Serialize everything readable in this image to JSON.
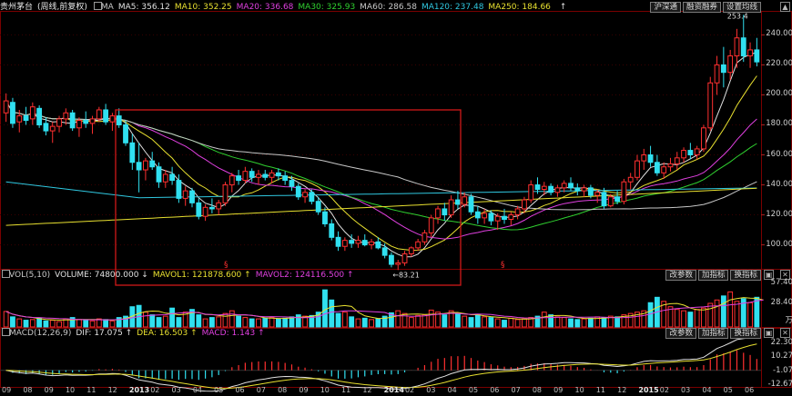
{
  "header": {
    "stock_name": "贵州茅台",
    "mode": "(周线,前复权)",
    "series_box": "MA",
    "ma": [
      {
        "label": "MA5: 356.12",
        "color": "#e0e0e0"
      },
      {
        "label": "MA10: 352.25",
        "color": "#e8e030"
      },
      {
        "label": "MA20: 336.68",
        "color": "#e040e0"
      },
      {
        "label": "MA30: 325.93",
        "color": "#30d030"
      },
      {
        "label": "MA60: 286.58",
        "color": "#c8c8c8"
      },
      {
        "label": "MA120: 237.48",
        "color": "#30c8e0"
      },
      {
        "label": "MA250: 184.66",
        "color": "#e8e030"
      }
    ],
    "arrow": "↑"
  },
  "top_buttons": [
    "沪深通",
    "融资融券",
    "设置均线"
  ],
  "vol_panel": {
    "series_box": "VOL(5,10)",
    "items": [
      {
        "label": "VOLUME: 74800.000",
        "color": "#e0e0e0",
        "arrow": "↓"
      },
      {
        "label": "MAVOL1: 121878.600",
        "color": "#e8e030",
        "arrow": "↑"
      },
      {
        "label": "MAVOL2: 124116.500",
        "color": "#e040e0",
        "arrow": "↑"
      }
    ],
    "buttons": [
      "改参数",
      "加指标",
      "换指标"
    ]
  },
  "macd_panel": {
    "series_box": "MACD(12,26,9)",
    "items": [
      {
        "label": "DIF: 17.075",
        "color": "#e0e0e0",
        "arrow": "↑"
      },
      {
        "label": "DEA: 16.503",
        "color": "#e8e030",
        "arrow": "↑"
      },
      {
        "label": "MACD: 1.143",
        "color": "#e040e0",
        "arrow": "↑"
      }
    ],
    "buttons": [
      "改参数",
      "加指标",
      "换指标"
    ]
  },
  "annotations": {
    "low_label": "←83.21",
    "high_label": "253.4",
    "marker_left": "§",
    "marker_right": "§",
    "box_color": "#d01818"
  },
  "colors": {
    "up": "#ff3030",
    "down": "#30e0f0",
    "bg": "#000000",
    "grid": "#7a0000"
  },
  "chart_data": {
    "type": "candlestick",
    "price_axis": {
      "ticks": [
        "240.00",
        "220.00",
        "200.00",
        "180.00",
        "160.00",
        "140.00",
        "120.00",
        "100.00"
      ],
      "range": [
        84,
        256
      ]
    },
    "vol_axis": {
      "ticks": [
        "57.40",
        "28.40",
        "万"
      ],
      "range": [
        0,
        70
      ]
    },
    "macd_axis": {
      "ticks": [
        "22.30",
        "10.27",
        "-1.07",
        "-12.67"
      ],
      "range": [
        -12.67,
        24
      ]
    },
    "x_ticks": [
      "09",
      "08",
      "09",
      "10",
      "11",
      "12",
      "2013",
      "02",
      "03",
      "04",
      "05",
      "06",
      "07",
      "08",
      "09",
      "10",
      "11",
      "12",
      "2014",
      "02",
      "03",
      "04",
      "05",
      "06",
      "07",
      "08",
      "09",
      "10",
      "11",
      "12",
      "2015",
      "02",
      "03",
      "04",
      "05",
      "06"
    ],
    "x_year_ticks": [
      "2013",
      "2014",
      "2015"
    ],
    "candles": [
      {
        "o": 188,
        "h": 201,
        "l": 182,
        "c": 196
      },
      {
        "o": 195,
        "h": 198,
        "l": 178,
        "c": 181
      },
      {
        "o": 182,
        "h": 190,
        "l": 175,
        "c": 186
      },
      {
        "o": 186,
        "h": 192,
        "l": 180,
        "c": 183
      },
      {
        "o": 184,
        "h": 195,
        "l": 180,
        "c": 192
      },
      {
        "o": 191,
        "h": 193,
        "l": 178,
        "c": 180
      },
      {
        "o": 181,
        "h": 185,
        "l": 173,
        "c": 176
      },
      {
        "o": 176,
        "h": 182,
        "l": 168,
        "c": 179
      },
      {
        "o": 179,
        "h": 186,
        "l": 175,
        "c": 184
      },
      {
        "o": 184,
        "h": 191,
        "l": 180,
        "c": 188
      },
      {
        "o": 188,
        "h": 190,
        "l": 176,
        "c": 178
      },
      {
        "o": 178,
        "h": 185,
        "l": 172,
        "c": 183
      },
      {
        "o": 183,
        "h": 189,
        "l": 178,
        "c": 181
      },
      {
        "o": 181,
        "h": 186,
        "l": 174,
        "c": 184
      },
      {
        "o": 184,
        "h": 192,
        "l": 182,
        "c": 190
      },
      {
        "o": 190,
        "h": 194,
        "l": 180,
        "c": 182
      },
      {
        "o": 182,
        "h": 188,
        "l": 176,
        "c": 186
      },
      {
        "o": 186,
        "h": 191,
        "l": 178,
        "c": 180
      },
      {
        "o": 180,
        "h": 183,
        "l": 166,
        "c": 168
      },
      {
        "o": 168,
        "h": 174,
        "l": 150,
        "c": 155
      },
      {
        "o": 155,
        "h": 168,
        "l": 135,
        "c": 150
      },
      {
        "o": 150,
        "h": 158,
        "l": 143,
        "c": 156
      },
      {
        "o": 156,
        "h": 162,
        "l": 150,
        "c": 152
      },
      {
        "o": 152,
        "h": 155,
        "l": 138,
        "c": 142
      },
      {
        "o": 142,
        "h": 150,
        "l": 138,
        "c": 147
      },
      {
        "o": 147,
        "h": 152,
        "l": 140,
        "c": 143
      },
      {
        "o": 143,
        "h": 147,
        "l": 128,
        "c": 131
      },
      {
        "o": 131,
        "h": 139,
        "l": 126,
        "c": 136
      },
      {
        "o": 136,
        "h": 138,
        "l": 125,
        "c": 128
      },
      {
        "o": 128,
        "h": 131,
        "l": 117,
        "c": 119
      },
      {
        "o": 119,
        "h": 127,
        "l": 116,
        "c": 125
      },
      {
        "o": 125,
        "h": 131,
        "l": 121,
        "c": 124
      },
      {
        "o": 124,
        "h": 130,
        "l": 120,
        "c": 128
      },
      {
        "o": 128,
        "h": 142,
        "l": 126,
        "c": 140
      },
      {
        "o": 140,
        "h": 148,
        "l": 135,
        "c": 146
      },
      {
        "o": 146,
        "h": 150,
        "l": 140,
        "c": 143
      },
      {
        "o": 143,
        "h": 152,
        "l": 141,
        "c": 149
      },
      {
        "o": 149,
        "h": 151,
        "l": 142,
        "c": 145
      },
      {
        "o": 145,
        "h": 150,
        "l": 140,
        "c": 147
      },
      {
        "o": 147,
        "h": 150,
        "l": 143,
        "c": 145
      },
      {
        "o": 145,
        "h": 150,
        "l": 141,
        "c": 148
      },
      {
        "o": 148,
        "h": 151,
        "l": 143,
        "c": 146
      },
      {
        "o": 146,
        "h": 149,
        "l": 140,
        "c": 143
      },
      {
        "o": 143,
        "h": 146,
        "l": 136,
        "c": 139
      },
      {
        "o": 139,
        "h": 141,
        "l": 130,
        "c": 132
      },
      {
        "o": 132,
        "h": 137,
        "l": 128,
        "c": 135
      },
      {
        "o": 135,
        "h": 137,
        "l": 127,
        "c": 129
      },
      {
        "o": 129,
        "h": 132,
        "l": 120,
        "c": 122
      },
      {
        "o": 122,
        "h": 125,
        "l": 112,
        "c": 114
      },
      {
        "o": 114,
        "h": 117,
        "l": 103,
        "c": 105
      },
      {
        "o": 105,
        "h": 109,
        "l": 96,
        "c": 99
      },
      {
        "o": 99,
        "h": 105,
        "l": 96,
        "c": 103
      },
      {
        "o": 103,
        "h": 107,
        "l": 98,
        "c": 101
      },
      {
        "o": 101,
        "h": 106,
        "l": 98,
        "c": 103
      },
      {
        "o": 103,
        "h": 107,
        "l": 99,
        "c": 100
      },
      {
        "o": 100,
        "h": 104,
        "l": 97,
        "c": 102
      },
      {
        "o": 102,
        "h": 105,
        "l": 97,
        "c": 98
      },
      {
        "o": 98,
        "h": 101,
        "l": 91,
        "c": 93
      },
      {
        "o": 93,
        "h": 95,
        "l": 85,
        "c": 87
      },
      {
        "o": 87,
        "h": 90,
        "l": 83.21,
        "c": 88
      },
      {
        "o": 88,
        "h": 96,
        "l": 86,
        "c": 94
      },
      {
        "o": 94,
        "h": 99,
        "l": 92,
        "c": 98
      },
      {
        "o": 98,
        "h": 104,
        "l": 96,
        "c": 102
      },
      {
        "o": 102,
        "h": 110,
        "l": 100,
        "c": 108
      },
      {
        "o": 108,
        "h": 120,
        "l": 105,
        "c": 118
      },
      {
        "o": 118,
        "h": 126,
        "l": 114,
        "c": 124
      },
      {
        "o": 124,
        "h": 128,
        "l": 116,
        "c": 120
      },
      {
        "o": 120,
        "h": 133,
        "l": 118,
        "c": 130
      },
      {
        "o": 130,
        "h": 136,
        "l": 124,
        "c": 127
      },
      {
        "o": 127,
        "h": 135,
        "l": 125,
        "c": 132
      },
      {
        "o": 132,
        "h": 134,
        "l": 120,
        "c": 122
      },
      {
        "o": 122,
        "h": 126,
        "l": 114,
        "c": 118
      },
      {
        "o": 118,
        "h": 124,
        "l": 114,
        "c": 121
      },
      {
        "o": 121,
        "h": 123,
        "l": 113,
        "c": 116
      },
      {
        "o": 116,
        "h": 121,
        "l": 110,
        "c": 119
      },
      {
        "o": 119,
        "h": 124,
        "l": 114,
        "c": 117
      },
      {
        "o": 117,
        "h": 122,
        "l": 113,
        "c": 120
      },
      {
        "o": 120,
        "h": 126,
        "l": 117,
        "c": 124
      },
      {
        "o": 124,
        "h": 132,
        "l": 121,
        "c": 130
      },
      {
        "o": 130,
        "h": 143,
        "l": 128,
        "c": 140
      },
      {
        "o": 140,
        "h": 145,
        "l": 134,
        "c": 137
      },
      {
        "o": 137,
        "h": 142,
        "l": 133,
        "c": 139
      },
      {
        "o": 139,
        "h": 141,
        "l": 133,
        "c": 135
      },
      {
        "o": 135,
        "h": 140,
        "l": 132,
        "c": 138
      },
      {
        "o": 138,
        "h": 143,
        "l": 135,
        "c": 141
      },
      {
        "o": 141,
        "h": 145,
        "l": 136,
        "c": 138
      },
      {
        "o": 138,
        "h": 141,
        "l": 133,
        "c": 136
      },
      {
        "o": 136,
        "h": 140,
        "l": 132,
        "c": 138
      },
      {
        "o": 138,
        "h": 140,
        "l": 131,
        "c": 133
      },
      {
        "o": 133,
        "h": 137,
        "l": 128,
        "c": 135
      },
      {
        "o": 135,
        "h": 138,
        "l": 124,
        "c": 126
      },
      {
        "o": 126,
        "h": 134,
        "l": 125,
        "c": 132
      },
      {
        "o": 132,
        "h": 136,
        "l": 127,
        "c": 129
      },
      {
        "o": 129,
        "h": 144,
        "l": 127,
        "c": 142
      },
      {
        "o": 142,
        "h": 148,
        "l": 137,
        "c": 145
      },
      {
        "o": 145,
        "h": 160,
        "l": 143,
        "c": 156
      },
      {
        "o": 156,
        "h": 164,
        "l": 150,
        "c": 160
      },
      {
        "o": 160,
        "h": 166,
        "l": 152,
        "c": 155
      },
      {
        "o": 155,
        "h": 160,
        "l": 146,
        "c": 148
      },
      {
        "o": 148,
        "h": 155,
        "l": 144,
        "c": 152
      },
      {
        "o": 152,
        "h": 158,
        "l": 149,
        "c": 154
      },
      {
        "o": 154,
        "h": 162,
        "l": 150,
        "c": 158
      },
      {
        "o": 158,
        "h": 165,
        "l": 155,
        "c": 163
      },
      {
        "o": 163,
        "h": 168,
        "l": 157,
        "c": 160
      },
      {
        "o": 160,
        "h": 166,
        "l": 157,
        "c": 164
      },
      {
        "o": 164,
        "h": 180,
        "l": 162,
        "c": 178
      },
      {
        "o": 178,
        "h": 212,
        "l": 176,
        "c": 208
      },
      {
        "o": 208,
        "h": 226,
        "l": 200,
        "c": 220
      },
      {
        "o": 220,
        "h": 232,
        "l": 205,
        "c": 215
      },
      {
        "o": 215,
        "h": 230,
        "l": 210,
        "c": 226
      },
      {
        "o": 226,
        "h": 244,
        "l": 218,
        "c": 238
      },
      {
        "o": 238,
        "h": 253.4,
        "l": 222,
        "c": 226
      },
      {
        "o": 226,
        "h": 235,
        "l": 218,
        "c": 230
      },
      {
        "o": 230,
        "h": 238,
        "l": 219,
        "c": 222
      }
    ],
    "volumes": [
      23,
      15,
      12,
      10,
      11,
      13,
      9,
      10,
      8,
      12,
      14,
      11,
      10,
      9,
      12,
      11,
      9,
      14,
      16,
      30,
      32,
      22,
      18,
      14,
      16,
      28,
      14,
      22,
      26,
      18,
      12,
      14,
      15,
      20,
      24,
      16,
      14,
      12,
      12,
      13,
      14,
      12,
      13,
      15,
      18,
      16,
      17,
      22,
      55,
      40,
      20,
      22,
      15,
      12,
      13,
      11,
      12,
      16,
      21,
      24,
      20,
      14,
      17,
      18,
      25,
      22,
      18,
      24,
      19,
      16,
      14,
      18,
      15,
      14,
      12,
      10,
      13,
      11,
      12,
      14,
      16,
      22,
      18,
      15,
      14,
      12,
      11,
      12,
      13,
      15,
      14,
      16,
      15,
      18,
      20,
      22,
      24,
      36,
      44,
      38,
      30,
      26,
      24,
      22,
      26,
      28,
      35,
      40,
      46,
      52,
      38,
      42,
      36,
      44,
      40
    ]
  }
}
